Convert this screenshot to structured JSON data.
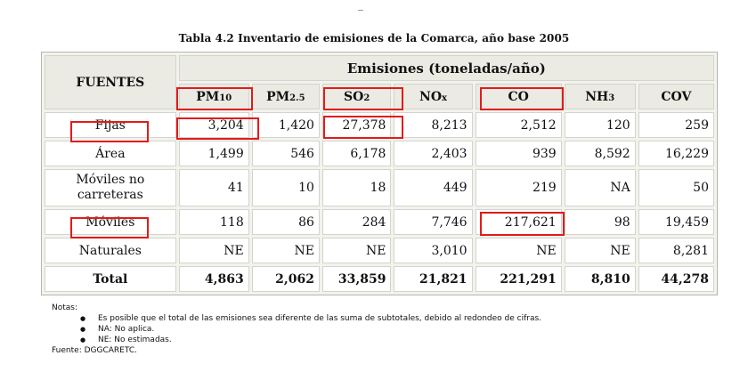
{
  "title": "Tabla 4.2 Inventario de emisiones de la Comarca, año base 2005",
  "table": {
    "sources_header": "FUENTES",
    "group_header": "Emisiones (toneladas/año)",
    "columns": [
      {
        "base": "PM",
        "sub": "10"
      },
      {
        "base": "PM",
        "sub": "2.5"
      },
      {
        "base": "SO",
        "sub": "2"
      },
      {
        "base": "NO",
        "sub": "x"
      },
      {
        "base": "CO",
        "sub": ""
      },
      {
        "base": "NH",
        "sub": "3"
      },
      {
        "base": "COV",
        "sub": ""
      }
    ],
    "rows": [
      {
        "source": "Fijas",
        "values": [
          "3,204",
          "1,420",
          "27,378",
          "8,213",
          "2,512",
          "120",
          "259"
        ]
      },
      {
        "source": "Área",
        "values": [
          "1,499",
          "546",
          "6,178",
          "2,403",
          "939",
          "8,592",
          "16,229"
        ]
      },
      {
        "source": "Móviles no carreteras",
        "values": [
          "41",
          "10",
          "18",
          "449",
          "219",
          "NA",
          "50"
        ]
      },
      {
        "source": "Móviles",
        "values": [
          "118",
          "86",
          "284",
          "7,746",
          "217,621",
          "98",
          "19,459"
        ]
      },
      {
        "source": "Naturales",
        "values": [
          "NE",
          "NE",
          "NE",
          "3,010",
          "NE",
          "NE",
          "8,281"
        ]
      }
    ],
    "total": {
      "source": "Total",
      "values": [
        "4,863",
        "2,062",
        "33,859",
        "21,821",
        "221,291",
        "8,810",
        "44,278"
      ]
    }
  },
  "notes": {
    "heading": "Notas:",
    "items": [
      "Es posible que el total de las emisiones sea diferente de las suma de subtotales, debido al redondeo de cifras.",
      "NA: No aplica.",
      "NE: No estimadas."
    ],
    "source": "Fuente: DGGCARETC."
  },
  "colors": {
    "highlight": "#e21b1b",
    "header_bg": "#ebebe4"
  }
}
